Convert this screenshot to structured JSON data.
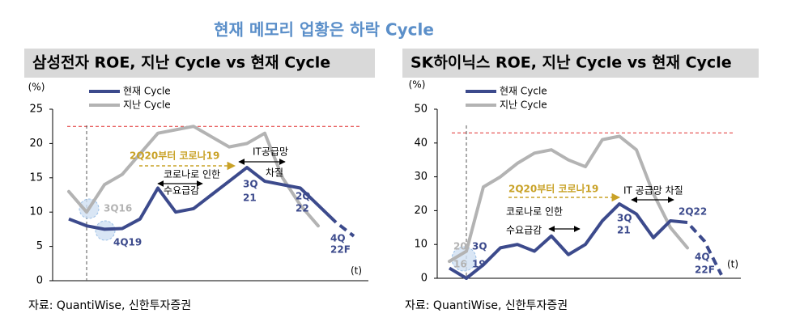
{
  "title": "현재 메모리 업황은 하락 Cycle",
  "chart_data": [
    {
      "type": "line",
      "title": "삼성전자 ROE, 지난 Cycle vs 현재 Cycle",
      "y_unit": "(%)",
      "x_label": "(t)",
      "categories": [
        null,
        null,
        null,
        null,
        null,
        null,
        null,
        null,
        null,
        null,
        null,
        null,
        null,
        null,
        null,
        null,
        null
      ],
      "series": [
        {
          "name": "현재 Cycle",
          "color": "#3c4a8c",
          "dashed_tail": 1,
          "values": [
            9,
            8,
            7.5,
            7.6,
            9,
            13.5,
            10,
            10.5,
            12.5,
            14.5,
            16.5,
            14.5,
            14,
            13.5,
            11,
            8.5,
            6.5
          ]
        },
        {
          "name": "지난 Cycle",
          "color": "#b3b3b3",
          "values": [
            13,
            10,
            14,
            15.5,
            18.5,
            21.5,
            22,
            22.5,
            21,
            19.5,
            20,
            21.5,
            15,
            11,
            8,
            null,
            null
          ]
        }
      ],
      "ylim": [
        0,
        25
      ],
      "yticks": [
        0,
        5,
        10,
        15,
        20,
        25
      ],
      "hline": 22.5,
      "vline_index": 1,
      "annotations": [
        {
          "text": [
            "2Q20부터 코로나19"
          ],
          "color": "#c9a227"
        },
        {
          "text": [
            "코로나로 인한",
            "수요급감"
          ],
          "color": "#000000"
        },
        {
          "text": [
            "IT공급망",
            "차질"
          ],
          "color": "#000000"
        },
        {
          "text": [
            "3Q16"
          ],
          "color": "#b3b3b3"
        },
        {
          "text": [
            "4Q19"
          ],
          "color": "#3c4a8c"
        },
        {
          "text": [
            "3Q",
            "21"
          ],
          "color": "#3c4a8c"
        },
        {
          "text": [
            "2Q",
            "22"
          ],
          "color": "#3c4a8c"
        },
        {
          "text": [
            "4Q",
            "22F"
          ],
          "color": "#3c4a8c"
        }
      ],
      "source": "자료: QuantiWise, 신한투자증권"
    },
    {
      "type": "line",
      "title": "SK하이닉스 ROE, 지난 Cycle vs 현재 Cycle",
      "y_unit": "(%)",
      "x_label": "(t)",
      "categories": [
        null,
        null,
        null,
        null,
        null,
        null,
        null,
        null,
        null,
        null,
        null,
        null,
        null,
        null,
        null,
        null,
        null
      ],
      "series": [
        {
          "name": "현재 Cycle",
          "color": "#3c4a8c",
          "dashed_tail": 2,
          "values": [
            3,
            0,
            4,
            9,
            10,
            8,
            12.5,
            7,
            10,
            17,
            22,
            19,
            12,
            17,
            16.5,
            11,
            1
          ]
        },
        {
          "name": "지난 Cycle",
          "color": "#b3b3b3",
          "values": [
            5,
            8,
            27,
            30,
            34,
            37,
            38,
            35,
            33,
            41,
            42,
            38,
            25,
            15,
            9,
            null,
            null
          ]
        }
      ],
      "ylim": [
        0,
        50
      ],
      "yticks": [
        0,
        10,
        20,
        30,
        40,
        50
      ],
      "hline": 43,
      "vline_index": 1,
      "annotations": [
        {
          "text": [
            "2Q20부터 코로나19"
          ],
          "color": "#c9a227"
        },
        {
          "text": [
            "코로나로 인한",
            "수요급감"
          ],
          "color": "#000000"
        },
        {
          "text": [
            "IT 공급망 차질"
          ],
          "color": "#000000"
        },
        {
          "text": [
            "20",
            "16"
          ],
          "color": "#b3b3b3"
        },
        {
          "text": [
            "3Q",
            "19"
          ],
          "color": "#3c4a8c"
        },
        {
          "text": [
            "3Q",
            "21"
          ],
          "color": "#3c4a8c"
        },
        {
          "text": [
            "2Q22"
          ],
          "color": "#3c4a8c"
        },
        {
          "text": [
            "4Q",
            "22F"
          ],
          "color": "#3c4a8c"
        }
      ],
      "source": "자료: QuantiWise, 신한투자증권"
    }
  ]
}
